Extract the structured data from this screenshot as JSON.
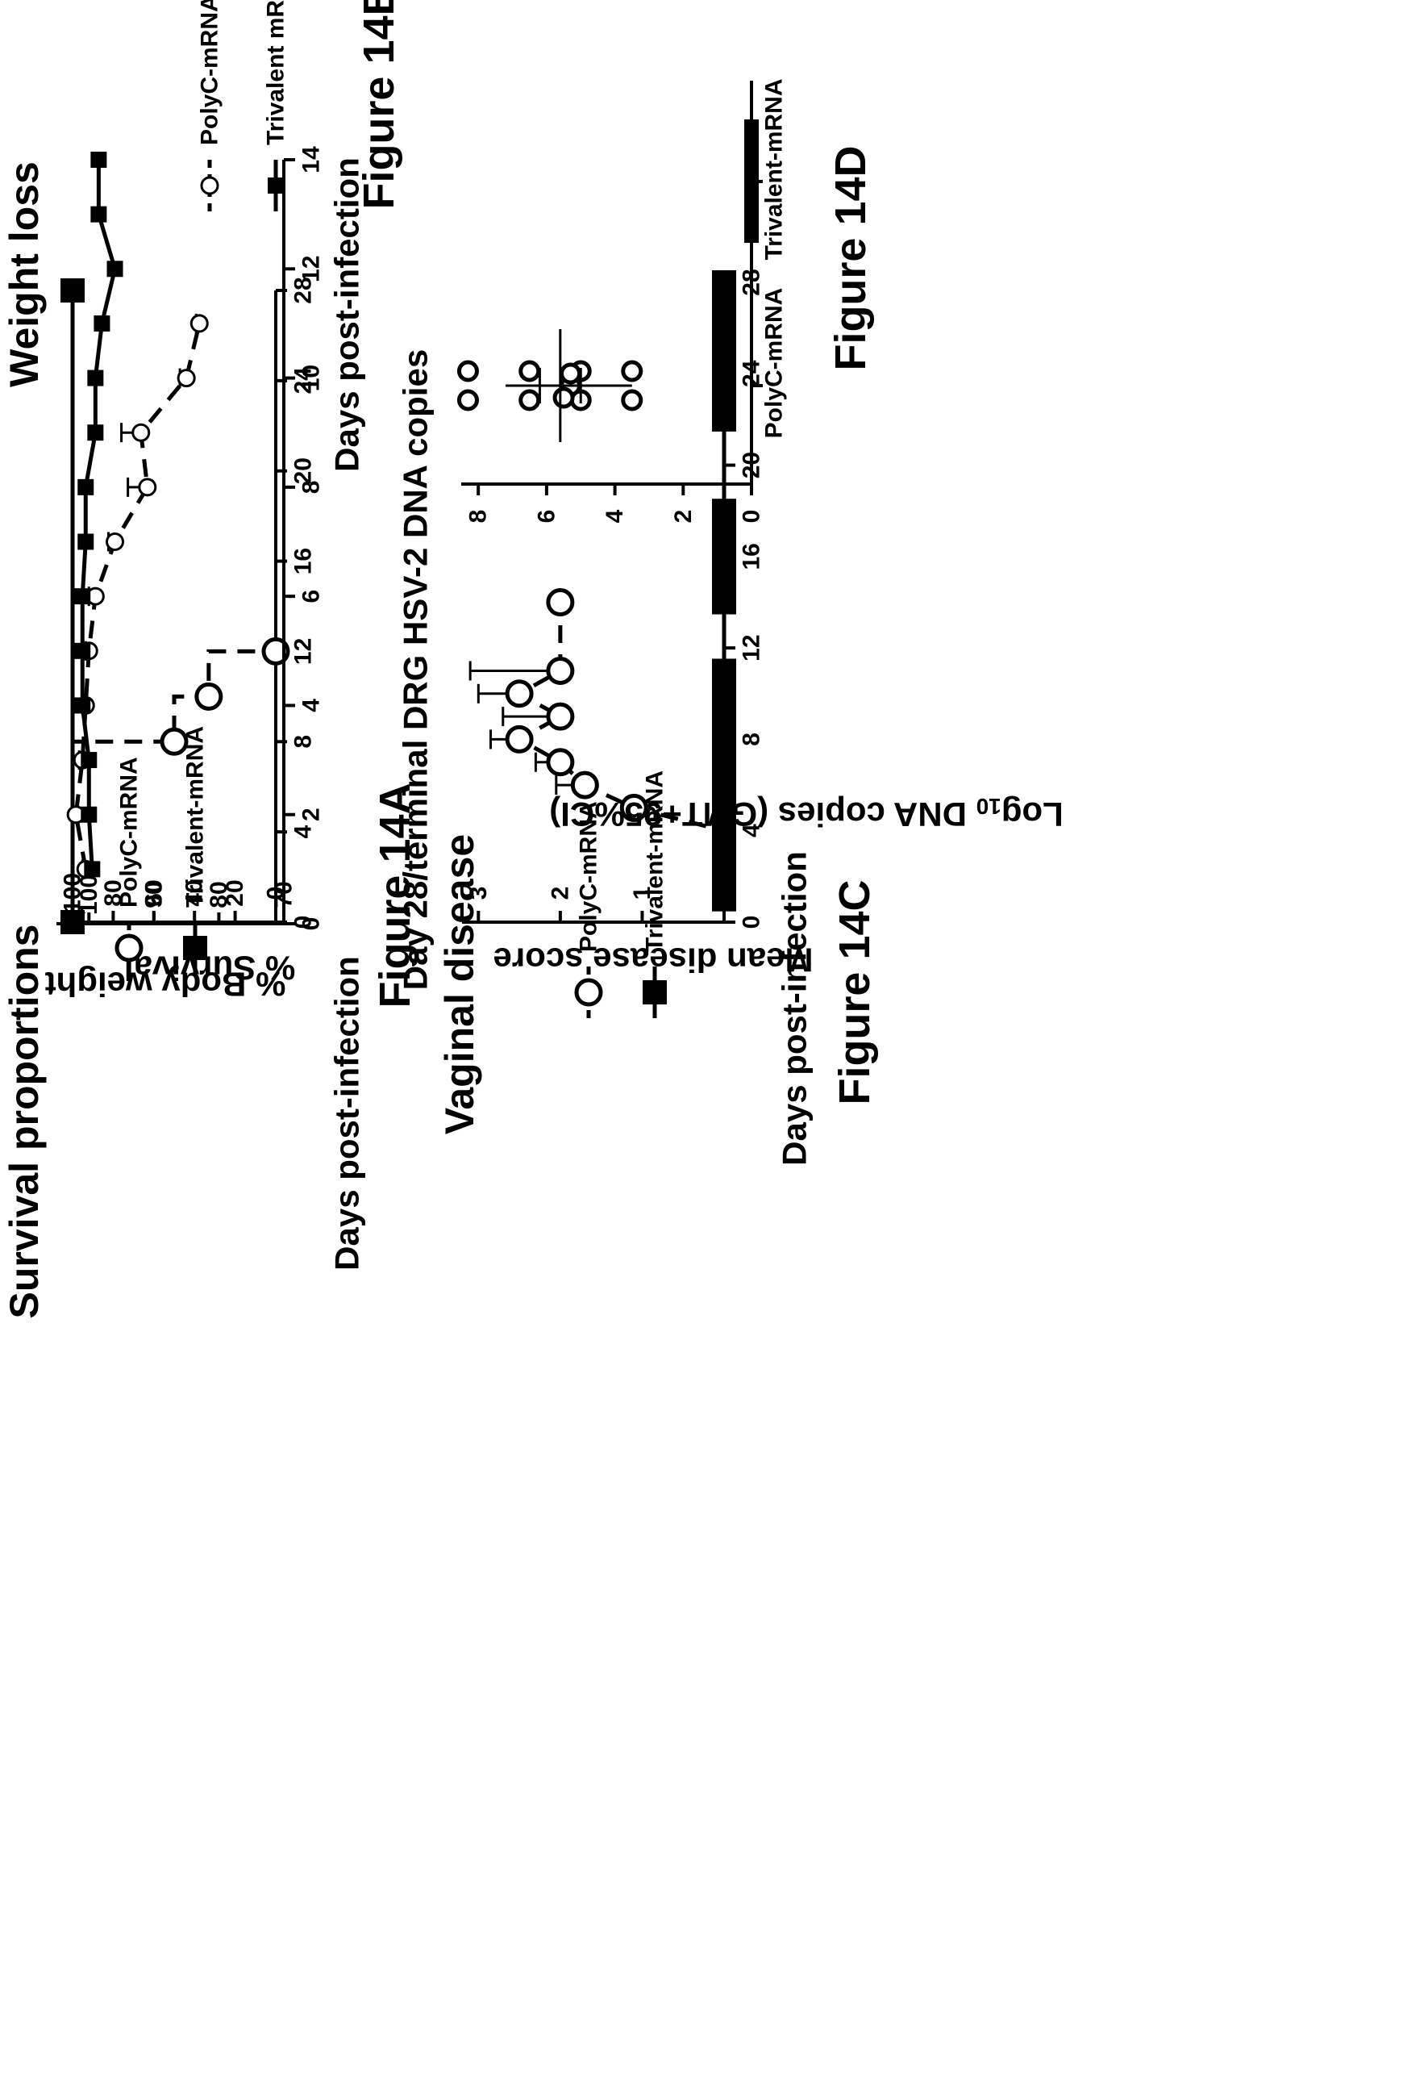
{
  "chart_data": [
    {
      "id": "14A",
      "type": "line",
      "title": "Survival proportions",
      "figure_label": "Figure 14A",
      "xlabel": "Days post-infection",
      "ylabel": "% Survival",
      "xlim": [
        0,
        28
      ],
      "ylim": [
        0,
        100
      ],
      "xticks": [
        0,
        4,
        8,
        12,
        16,
        20,
        24,
        28
      ],
      "yticks": [
        0,
        20,
        40,
        60,
        80,
        100
      ],
      "legend": [
        "PolyC-mRNA",
        "Trivalent-mRNA"
      ],
      "series": [
        {
          "name": "PolyC-mRNA",
          "style": "dashed",
          "marker": "open-circle",
          "step": true,
          "x": [
            0,
            8,
            10,
            12
          ],
          "y": [
            100,
            50,
            33,
            0
          ]
        },
        {
          "name": "Trivalent-mRNA",
          "style": "solid",
          "marker": "filled-square",
          "step": true,
          "x": [
            0,
            28
          ],
          "y": [
            100,
            100
          ]
        }
      ]
    },
    {
      "id": "14B",
      "type": "line",
      "title": "Weight loss",
      "figure_label": "Figure 14B",
      "xlabel": "Days post-infection",
      "ylabel": "% Body weight",
      "xlim": [
        0,
        14
      ],
      "ylim": [
        70,
        105
      ],
      "xticks": [
        0,
        2,
        4,
        6,
        8,
        10,
        12,
        14
      ],
      "yticks": [
        70,
        80,
        90,
        100
      ],
      "legend": [
        "PolyC-mRNA",
        "Trivalent mRNA"
      ],
      "series": [
        {
          "name": "PolyC-mRNA",
          "style": "dashed",
          "marker": "open-circle",
          "x": [
            1,
            2,
            3,
            4,
            5,
            6,
            7,
            8,
            9,
            10,
            11
          ],
          "y": [
            100.5,
            102,
            101,
            100.5,
            100,
            99,
            96,
            91,
            92,
            85,
            83
          ],
          "err": [
            0.5,
            0.5,
            0.5,
            0.5,
            0.5,
            1,
            1,
            3,
            3,
            1,
            0.5
          ]
        },
        {
          "name": "Trivalent mRNA",
          "style": "solid",
          "marker": "filled-square",
          "x": [
            1,
            2,
            3,
            4,
            5,
            6,
            7,
            8,
            9,
            10,
            11,
            12,
            13,
            14
          ],
          "y": [
            99.5,
            100,
            100,
            101,
            101,
            101,
            100.5,
            100.5,
            99,
            99,
            98,
            96,
            98.5,
            98.5
          ]
        }
      ]
    },
    {
      "id": "14C",
      "type": "line",
      "title": "Vaginal disease",
      "figure_label": "Figure 14C",
      "xlabel": "Days post-infection",
      "ylabel": "Mean disease score",
      "xlim": [
        0,
        28
      ],
      "ylim": [
        0,
        3.2
      ],
      "xticks": [
        0,
        4,
        8,
        12,
        16,
        20,
        24,
        28
      ],
      "yticks": [
        0,
        1,
        2,
        3
      ],
      "legend": [
        "PolyC-mRNA",
        "Trivalent-mRNA"
      ],
      "series": [
        {
          "name": "PolyC-mRNA",
          "style": "dashed",
          "marker": "open-circle",
          "x": [
            1,
            2,
            3,
            4,
            5,
            6,
            7,
            8,
            9,
            10,
            11,
            14
          ],
          "y": [
            0,
            0,
            0,
            0,
            1.1,
            1.7,
            2.0,
            2.5,
            2.0,
            2.5,
            2.0,
            2.0
          ],
          "err": [
            0,
            0,
            0,
            0,
            0.1,
            0.35,
            0.3,
            0.35,
            0.7,
            0.5,
            1.1,
            0
          ]
        },
        {
          "name": "Trivalent-mRNA",
          "style": "solid",
          "marker": "filled-square",
          "x": [
            1,
            2,
            3,
            4,
            5,
            6,
            7,
            8,
            9,
            10,
            11,
            14,
            15,
            16,
            17,
            18,
            22,
            23,
            24,
            25,
            26,
            27,
            28
          ],
          "y": [
            0,
            0,
            0,
            0,
            0,
            0,
            0,
            0,
            0,
            0,
            0,
            0,
            0,
            0,
            0,
            0,
            0,
            0,
            0,
            0,
            0,
            0,
            0
          ]
        }
      ]
    },
    {
      "id": "14D",
      "type": "scatter",
      "title": "Day 28/terminal DRG HSV-2 DNA copies",
      "figure_label": "Figure 14D",
      "ylabel": "Log10 DNA copies (GMT+95%CI)",
      "ylabel_parts": {
        "pre": "Log",
        "sub": "10",
        "post": " DNA copies (GMT+95%CI)"
      },
      "ylim": [
        0,
        8.5
      ],
      "yticks": [
        0,
        2,
        4,
        6,
        8
      ],
      "categories": [
        "PolyC-mRNA",
        "Trivalent-mRNA"
      ],
      "series": [
        {
          "name": "PolyC-mRNA",
          "marker": "open-circle",
          "points": [
            8.3,
            8.3,
            6.5,
            6.5,
            5,
            5,
            5.3,
            5.3,
            5.5,
            3.5,
            3.5
          ],
          "gmt": 5.6,
          "ci": [
            5.0,
            6.2
          ],
          "range": [
            3.5,
            7.2
          ]
        },
        {
          "name": "Trivalent-mRNA",
          "marker": "filled-square",
          "points": [
            0,
            0,
            0,
            0,
            0,
            0,
            0,
            0,
            0,
            0
          ],
          "gmt": 0
        }
      ]
    }
  ]
}
